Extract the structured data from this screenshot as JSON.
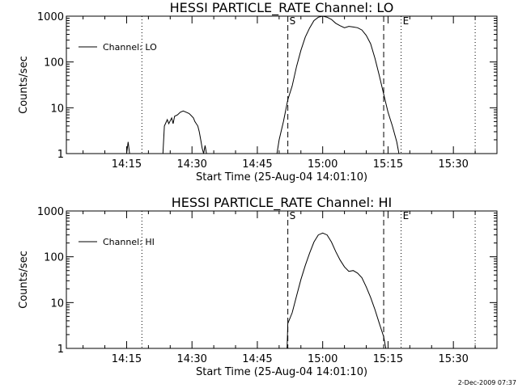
{
  "chart_data": [
    {
      "type": "line",
      "title": "HESSI PARTICLE_RATE Channel: LO",
      "xlabel": "Start Time (25-Aug-04 14:01:10)",
      "ylabel": "Counts/sec",
      "yscale": "log",
      "xlim": [
        "14:01:10",
        "15:40:00"
      ],
      "ylim": [
        1,
        1000
      ],
      "xticks": [
        "14:15",
        "14:30",
        "14:45",
        "15:00",
        "15:15",
        "15:30"
      ],
      "yticks": [
        "1",
        "10",
        "100",
        "1000"
      ],
      "legend": {
        "position": "top-left",
        "entries": [
          "Channel: LO"
        ]
      },
      "markers": [
        {
          "label": "S",
          "time": "14:52:00",
          "style": "dashed"
        },
        {
          "label": "",
          "time": "15:14:00",
          "style": "dashed"
        },
        {
          "label": "E",
          "time": "15:18:00",
          "style": "dotted"
        },
        {
          "label": "",
          "time": "14:18:30",
          "style": "dotted"
        },
        {
          "label": "",
          "time": "15:35:00",
          "style": "dotted"
        }
      ],
      "series": [
        {
          "name": "Channel: LO",
          "segments": [
            [
              [
                "14:15:00",
                1
              ],
              [
                "14:15:20",
                1.8
              ],
              [
                "14:15:40",
                1
              ]
            ],
            [
              [
                "14:23:20",
                1
              ],
              [
                "14:23:40",
                4
              ],
              [
                "14:24:20",
                5.5
              ],
              [
                "14:24:40",
                4.5
              ],
              [
                "14:25:20",
                6
              ],
              [
                "14:25:40",
                4.5
              ],
              [
                "14:26:00",
                6.5
              ],
              [
                "14:26:40",
                7
              ],
              [
                "14:27:20",
                8
              ],
              [
                "14:28:00",
                8.5
              ],
              [
                "14:28:40",
                8
              ],
              [
                "14:29:20",
                7.5
              ],
              [
                "14:29:40",
                7
              ],
              [
                "14:30:20",
                6
              ],
              [
                "14:30:40",
                5
              ],
              [
                "14:31:20",
                4
              ],
              [
                "14:31:40",
                3
              ],
              [
                "14:32:00",
                2
              ],
              [
                "14:32:20",
                1.3
              ],
              [
                "14:32:40",
                1
              ],
              [
                "14:33:00",
                1.5
              ],
              [
                "14:33:20",
                1
              ]
            ],
            [
              [
                "14:49:30",
                1
              ],
              [
                "14:50:00",
                2
              ],
              [
                "14:51:00",
                5
              ],
              [
                "14:52:00",
                15
              ],
              [
                "14:53:00",
                30
              ],
              [
                "14:54:00",
                80
              ],
              [
                "14:55:00",
                180
              ],
              [
                "14:56:00",
                350
              ],
              [
                "14:57:00",
                550
              ],
              [
                "14:58:00",
                800
              ],
              [
                "14:59:00",
                950
              ],
              [
                "15:00:00",
                1000
              ],
              [
                "15:01:00",
                950
              ],
              [
                "15:02:00",
                850
              ],
              [
                "15:03:00",
                700
              ],
              [
                "15:04:00",
                620
              ],
              [
                "15:05:00",
                560
              ],
              [
                "15:06:00",
                600
              ],
              [
                "15:07:00",
                580
              ],
              [
                "15:08:00",
                560
              ],
              [
                "15:09:00",
                500
              ],
              [
                "15:10:00",
                380
              ],
              [
                "15:11:00",
                250
              ],
              [
                "15:12:00",
                120
              ],
              [
                "15:13:00",
                50
              ],
              [
                "15:14:00",
                20
              ],
              [
                "15:15:00",
                8
              ],
              [
                "15:16:00",
                4
              ],
              [
                "15:17:00",
                1.8
              ],
              [
                "15:17:30",
                1
              ]
            ]
          ]
        }
      ]
    },
    {
      "type": "line",
      "title": "HESSI PARTICLE_RATE Channel: HI",
      "xlabel": "Start Time (25-Aug-04 14:01:10)",
      "ylabel": "Counts/sec",
      "yscale": "log",
      "xlim": [
        "14:01:10",
        "15:40:00"
      ],
      "ylim": [
        1,
        1000
      ],
      "xticks": [
        "14:15",
        "14:30",
        "14:45",
        "15:00",
        "15:15",
        "15:30"
      ],
      "yticks": [
        "1",
        "10",
        "100",
        "1000"
      ],
      "legend": {
        "position": "top-left",
        "entries": [
          "Channel: HI"
        ]
      },
      "markers": [
        {
          "label": "S",
          "time": "14:52:00",
          "style": "dashed"
        },
        {
          "label": "",
          "time": "15:14:00",
          "style": "dashed"
        },
        {
          "label": "E",
          "time": "15:18:00",
          "style": "dotted"
        },
        {
          "label": "",
          "time": "14:18:30",
          "style": "dotted"
        },
        {
          "label": "",
          "time": "15:35:00",
          "style": "dotted"
        }
      ],
      "series": [
        {
          "name": "Channel: HI",
          "segments": [
            [
              [
                "14:51:50",
                1
              ],
              [
                "14:52:00",
                3.5
              ],
              [
                "14:53:00",
                6
              ],
              [
                "14:54:00",
                14
              ],
              [
                "14:55:00",
                32
              ],
              [
                "14:56:00",
                65
              ],
              [
                "14:57:00",
                120
              ],
              [
                "14:58:00",
                210
              ],
              [
                "14:59:00",
                300
              ],
              [
                "15:00:00",
                330
              ],
              [
                "15:01:00",
                300
              ],
              [
                "15:02:00",
                210
              ],
              [
                "15:03:00",
                130
              ],
              [
                "15:04:00",
                85
              ],
              [
                "15:05:00",
                60
              ],
              [
                "15:06:00",
                48
              ],
              [
                "15:07:00",
                50
              ],
              [
                "15:08:00",
                44
              ],
              [
                "15:09:00",
                35
              ],
              [
                "15:10:00",
                22
              ],
              [
                "15:11:00",
                13
              ],
              [
                "15:12:00",
                7
              ],
              [
                "15:13:00",
                3.5
              ],
              [
                "15:14:00",
                1.8
              ],
              [
                "15:14:30",
                1
              ]
            ]
          ]
        }
      ]
    }
  ],
  "timestamp": "2-Dec-2009 07:37"
}
